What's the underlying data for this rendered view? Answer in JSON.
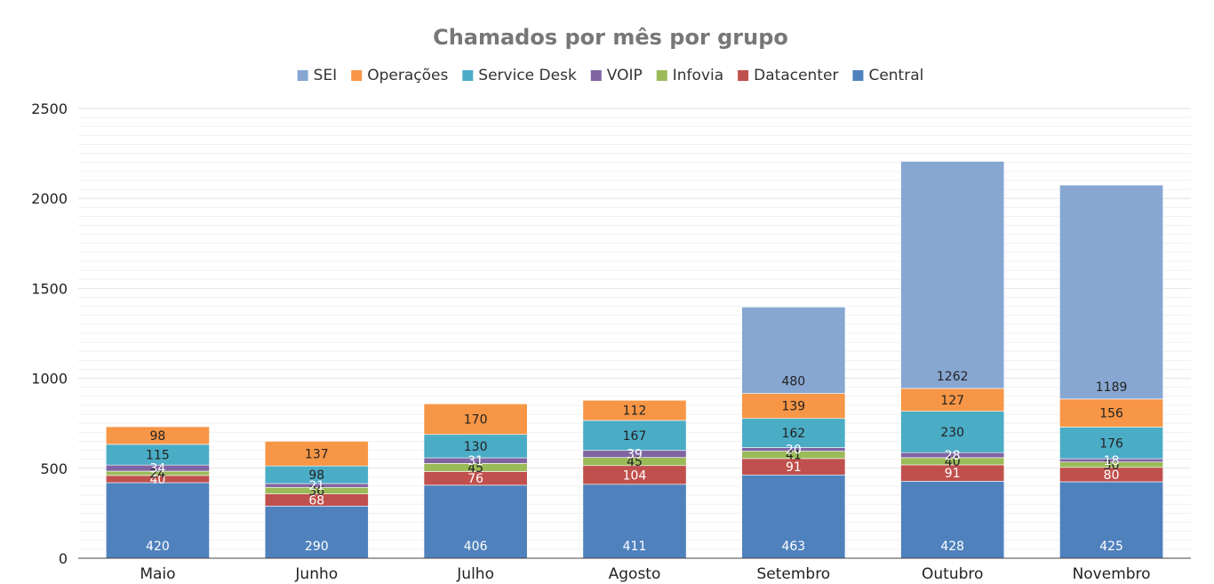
{
  "chart_data": {
    "type": "bar",
    "stacked": true,
    "title": "Chamados por mês por grupo",
    "xlabel": "",
    "ylabel": "",
    "ylim": [
      0,
      2500
    ],
    "yticks": [
      0,
      500,
      1000,
      1500,
      2000,
      2500
    ],
    "grid": true,
    "legend_position": "top",
    "categories": [
      "Maio",
      "Junho",
      "Julho",
      "Agosto",
      "Setembro",
      "Outubro",
      "Novembro"
    ],
    "series": [
      {
        "name": "Central",
        "color": "#4f81bd",
        "label_color": "#ffffff",
        "values": [
          420,
          290,
          406,
          411,
          463,
          428,
          425
        ]
      },
      {
        "name": "Datacenter",
        "color": "#c0504d",
        "label_color": "#ffffff",
        "values": [
          40,
          68,
          76,
          104,
          91,
          91,
          80
        ]
      },
      {
        "name": "Infovia",
        "color": "#9bbb59",
        "label_color": "#222222",
        "values": [
          24,
          36,
          45,
          45,
          41,
          40,
          30
        ]
      },
      {
        "name": "VOIP",
        "color": "#8064a2",
        "label_color": "#ffffff",
        "values": [
          34,
          21,
          31,
          39,
          20,
          28,
          18
        ]
      },
      {
        "name": "Service Desk",
        "color": "#4bacc6",
        "label_color": "#222222",
        "values": [
          115,
          98,
          130,
          167,
          162,
          230,
          176
        ]
      },
      {
        "name": "Operações",
        "color": "#f79646",
        "label_color": "#222222",
        "values": [
          98,
          137,
          170,
          112,
          139,
          127,
          156
        ]
      },
      {
        "name": "SEI",
        "color": "#87a7d2",
        "label_color": "#222222",
        "values": [
          0,
          0,
          0,
          0,
          480,
          1262,
          1189
        ]
      }
    ],
    "legend_order": [
      "SEI",
      "Operações",
      "Service Desk",
      "VOIP",
      "Infovia",
      "Datacenter",
      "Central"
    ]
  }
}
